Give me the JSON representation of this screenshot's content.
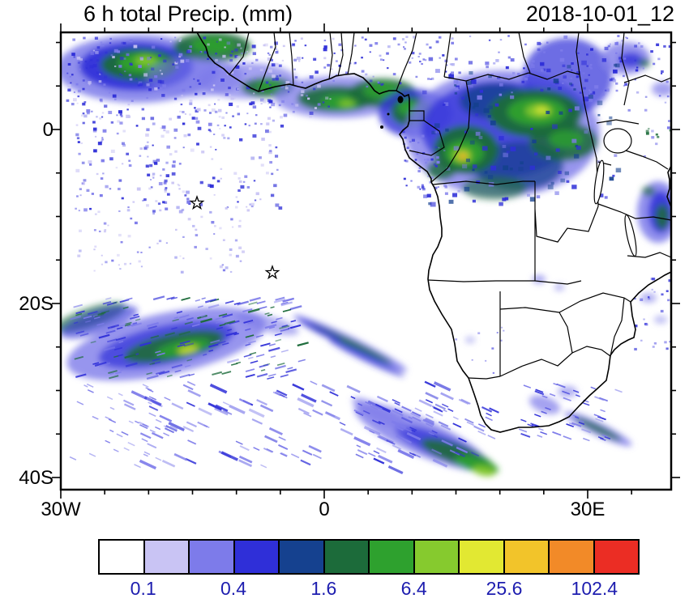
{
  "header": {
    "title": "6 h total Precip. (mm)",
    "date": "2018-10-01_12"
  },
  "axes": {
    "y_labels": [
      "0",
      "20S",
      "40S"
    ],
    "x_labels": [
      "30W",
      "0",
      "30E"
    ]
  },
  "colorbar": {
    "colors": [
      "#ffffff",
      "#c9c4f4",
      "#7d7bea",
      "#2f2fd8",
      "#15418f",
      "#1c6b3a",
      "#2ea12e",
      "#86ca2e",
      "#e2e832",
      "#f2c42a",
      "#f28a28",
      "#eb2d24"
    ],
    "labels": [
      "0.1",
      "0.4",
      "1.6",
      "6.4",
      "25.6",
      "102.4"
    ],
    "label_boundaries": [
      1,
      3,
      5,
      7,
      9,
      11
    ],
    "label_color": "#1d1daf"
  },
  "map": {
    "marker_symbol": "star",
    "marker_count": 2
  }
}
